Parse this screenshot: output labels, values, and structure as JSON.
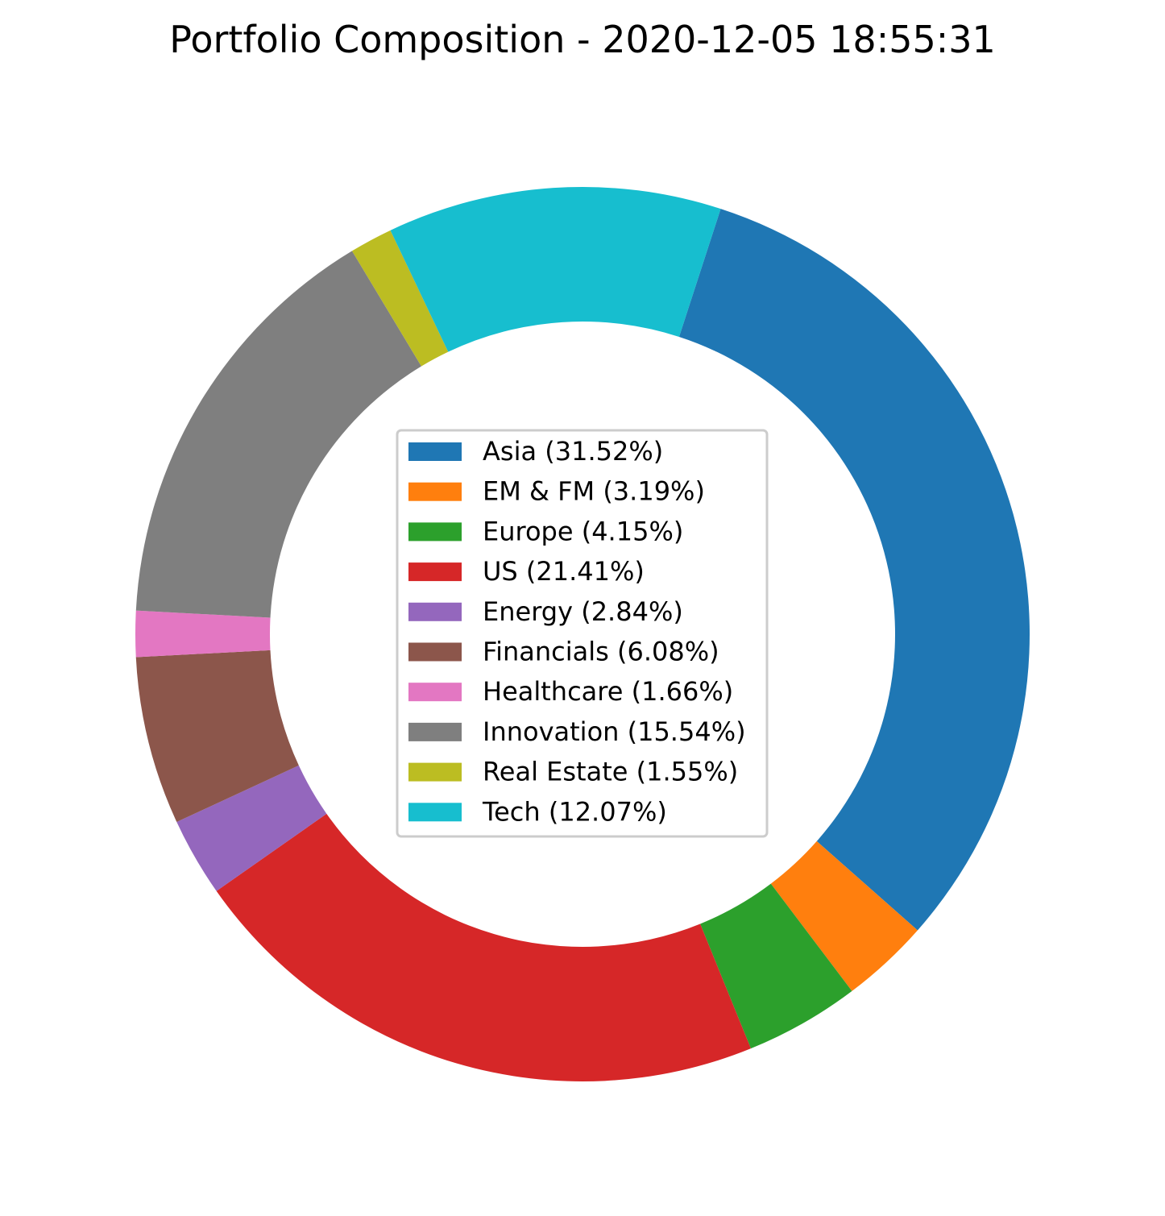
{
  "chart_data": {
    "type": "pie",
    "variant": "donut",
    "title": "Portfolio Composition - 2020-12-05 18:55:31",
    "start_angle_deg": 72,
    "direction": "clockwise",
    "legend_position": "center",
    "slices": [
      {
        "label": "Asia",
        "value": 31.52,
        "legend_text": "Asia (31.52%)",
        "color": "#1f77b4"
      },
      {
        "label": "EM & FM",
        "value": 3.19,
        "legend_text": "EM & FM (3.19%)",
        "color": "#ff7f0e"
      },
      {
        "label": "Europe",
        "value": 4.15,
        "legend_text": "Europe (4.15%)",
        "color": "#2ca02c"
      },
      {
        "label": "US",
        "value": 21.41,
        "legend_text": "US (21.41%)",
        "color": "#d62728"
      },
      {
        "label": "Energy",
        "value": 2.84,
        "legend_text": "Energy (2.84%)",
        "color": "#9467bd"
      },
      {
        "label": "Financials",
        "value": 6.08,
        "legend_text": "Financials (6.08%)",
        "color": "#8c564b"
      },
      {
        "label": "Healthcare",
        "value": 1.66,
        "legend_text": "Healthcare (1.66%)",
        "color": "#e377c2"
      },
      {
        "label": "Innovation",
        "value": 15.54,
        "legend_text": "Innovation (15.54%)",
        "color": "#7f7f7f"
      },
      {
        "label": "Real Estate",
        "value": 1.55,
        "legend_text": "Real Estate (1.55%)",
        "color": "#bcbd22"
      },
      {
        "label": "Tech",
        "value": 12.07,
        "legend_text": "Tech (12.07%)",
        "color": "#17becf"
      }
    ]
  }
}
